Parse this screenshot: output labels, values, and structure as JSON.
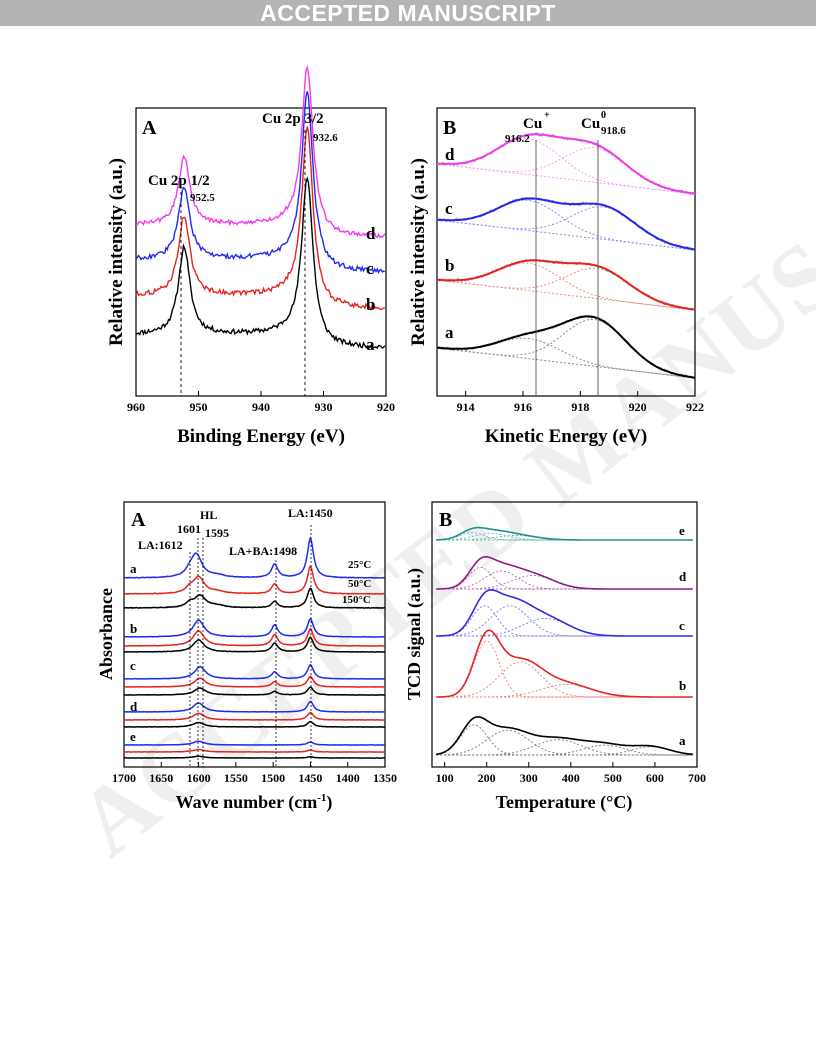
{
  "banner": {
    "text": "ACCEPTED MANUSCRIPT"
  },
  "watermark": "ACCEPTED MANUSCRIPT",
  "figures": {
    "xps_cu2p": {
      "panel_label": "A",
      "xlabel": "Binding Energy (eV)",
      "ylabel": "Relative intensity (a.u.)",
      "x_ticks": [
        "960",
        "950",
        "940",
        "930",
        "920"
      ],
      "peak_labels": [
        {
          "name": "Cu 2p 1/2",
          "position": "952.5"
        },
        {
          "name": "Cu 2p 3/2",
          "position": "932.6"
        }
      ],
      "series_labels": [
        "a",
        "b",
        "c",
        "d"
      ],
      "colors": [
        "#000000",
        "#e8231f",
        "#1f2bf0",
        "#f23af0"
      ]
    },
    "xaes_lmm": {
      "panel_label": "B",
      "xlabel": "Kinetic Energy (eV)",
      "ylabel": "Relative intensity (a.u.)",
      "x_ticks": [
        "914",
        "916",
        "918",
        "920",
        "922"
      ],
      "species": [
        {
          "name": "Cu",
          "charge": "+",
          "position": "916.2"
        },
        {
          "name": "Cu",
          "charge": "0",
          "position": "918.6"
        }
      ],
      "series_labels": [
        "a",
        "b",
        "c",
        "d"
      ]
    },
    "pyridine_ir": {
      "panel_label": "A",
      "xlabel": "Wave number",
      "xunit": "(cm",
      "xunit_sup": "-1",
      "xunit_close": ")",
      "ylabel": "Absorbance",
      "x_ticks": [
        "1700",
        "1650",
        "1600",
        "1550",
        "1500",
        "1450",
        "1400",
        "1350"
      ],
      "band_labels": [
        "LA:1612",
        "1601",
        "HL",
        "1595",
        "LA+BA:1498",
        "LA:1450"
      ],
      "temperatures": [
        "25°C",
        "50°C",
        "150°C"
      ],
      "series_labels": [
        "a",
        "b",
        "c",
        "d",
        "e"
      ]
    },
    "h2_tpr": {
      "panel_label": "B",
      "xlabel": "Temperature (°C)",
      "ylabel": "TCD signal (a.u.)",
      "x_ticks": [
        "100",
        "200",
        "300",
        "400",
        "500",
        "600",
        "700"
      ],
      "series_labels": [
        "e",
        "d",
        "c",
        "b",
        "a"
      ],
      "colors": [
        "#1e9089",
        "#8a1c8a",
        "#2b2be8",
        "#e8231f",
        "#000000"
      ]
    }
  },
  "chart_data": [
    {
      "type": "line",
      "title": "",
      "xlabel": "Binding Energy (eV)",
      "ylabel": "Relative intensity (a.u.)",
      "xlim": [
        960,
        920
      ],
      "annotations": [
        {
          "text": "Cu 2p 1/2",
          "x": 952.5
        },
        {
          "text": "Cu 2p 3/2",
          "x": 932.6
        }
      ],
      "series": [
        {
          "name": "a",
          "peaks": [
            {
              "x": 952.3,
              "height": 0.46
            },
            {
              "x": 932.6,
              "height": 0.9
            }
          ]
        },
        {
          "name": "b",
          "peaks": [
            {
              "x": 952.3,
              "height": 0.42
            },
            {
              "x": 932.6,
              "height": 0.95
            }
          ]
        },
        {
          "name": "c",
          "peaks": [
            {
              "x": 952.3,
              "height": 0.4
            },
            {
              "x": 932.6,
              "height": 1.0
            }
          ]
        },
        {
          "name": "d",
          "peaks": [
            {
              "x": 952.3,
              "height": 0.4
            },
            {
              "x": 932.6,
              "height": 1.0
            }
          ]
        }
      ]
    },
    {
      "type": "line",
      "title": "",
      "xlabel": "Kinetic Energy (eV)",
      "ylabel": "Relative intensity (a.u.)",
      "xlim": [
        913,
        922
      ],
      "annotations": [
        {
          "text": "Cu+",
          "x": 916.2
        },
        {
          "text": "Cu0",
          "x": 918.6
        }
      ],
      "series": [
        {
          "name": "a",
          "components": [
            {
              "x": 916.2,
              "height": 0.28
            },
            {
              "x": 918.5,
              "height": 0.65
            }
          ]
        },
        {
          "name": "b",
          "components": [
            {
              "x": 916.2,
              "height": 0.38
            },
            {
              "x": 918.6,
              "height": 0.42
            }
          ]
        },
        {
          "name": "c",
          "components": [
            {
              "x": 916.2,
              "height": 0.42
            },
            {
              "x": 918.8,
              "height": 0.45
            }
          ]
        },
        {
          "name": "d",
          "components": [
            {
              "x": 916.2,
              "height": 0.5
            },
            {
              "x": 918.5,
              "height": 0.48
            }
          ]
        }
      ]
    },
    {
      "type": "line",
      "title": "",
      "xlabel": "Wave number (cm-1)",
      "ylabel": "Absorbance",
      "xlim": [
        1700,
        1350
      ],
      "reference_lines": [
        1612,
        1601,
        1595,
        1498,
        1450
      ],
      "series": [
        {
          "name": "a 25°C",
          "bands": [
            {
              "x": 1603,
              "h": 0.42
            },
            {
              "x": 1498,
              "h": 0.25
            },
            {
              "x": 1450,
              "h": 0.72
            }
          ]
        },
        {
          "name": "a 50°C",
          "bands": [
            {
              "x": 1600,
              "h": 0.3
            },
            {
              "x": 1498,
              "h": 0.18
            },
            {
              "x": 1450,
              "h": 0.5
            }
          ]
        },
        {
          "name": "a 150°C",
          "bands": [
            {
              "x": 1598,
              "h": 0.22
            },
            {
              "x": 1498,
              "h": 0.12
            },
            {
              "x": 1450,
              "h": 0.36
            }
          ]
        },
        {
          "name": "b 25°C",
          "bands": [
            {
              "x": 1600,
              "h": 0.42
            },
            {
              "x": 1498,
              "h": 0.3
            },
            {
              "x": 1450,
              "h": 0.45
            }
          ]
        },
        {
          "name": "b 50°C",
          "bands": [
            {
              "x": 1600,
              "h": 0.38
            },
            {
              "x": 1498,
              "h": 0.28
            },
            {
              "x": 1450,
              "h": 0.42
            }
          ]
        },
        {
          "name": "b 150°C",
          "bands": [
            {
              "x": 1600,
              "h": 0.3
            },
            {
              "x": 1498,
              "h": 0.22
            },
            {
              "x": 1450,
              "h": 0.36
            }
          ]
        },
        {
          "name": "c 25°C",
          "bands": [
            {
              "x": 1598,
              "h": 0.35
            },
            {
              "x": 1498,
              "h": 0.2
            },
            {
              "x": 1450,
              "h": 0.4
            }
          ]
        },
        {
          "name": "c 50°C",
          "bands": [
            {
              "x": 1598,
              "h": 0.25
            },
            {
              "x": 1498,
              "h": 0.15
            },
            {
              "x": 1450,
              "h": 0.3
            }
          ]
        },
        {
          "name": "c 150°C",
          "bands": [
            {
              "x": 1598,
              "h": 0.2
            },
            {
              "x": 1498,
              "h": 0.1
            },
            {
              "x": 1450,
              "h": 0.22
            }
          ]
        },
        {
          "name": "d 25°C",
          "bands": [
            {
              "x": 1600,
              "h": 0.3
            },
            {
              "x": 1450,
              "h": 0.35
            }
          ]
        },
        {
          "name": "d 50°C",
          "bands": [
            {
              "x": 1600,
              "h": 0.22
            },
            {
              "x": 1450,
              "h": 0.25
            }
          ]
        },
        {
          "name": "d 150°C",
          "bands": [
            {
              "x": 1600,
              "h": 0.15
            },
            {
              "x": 1450,
              "h": 0.18
            }
          ]
        },
        {
          "name": "e 25°C",
          "bands": [
            {
              "x": 1600,
              "h": 0.15
            },
            {
              "x": 1450,
              "h": 0.12
            }
          ]
        },
        {
          "name": "e 50°C",
          "bands": [
            {
              "x": 1600,
              "h": 0.1
            },
            {
              "x": 1450,
              "h": 0.08
            }
          ]
        },
        {
          "name": "e 150°C",
          "bands": [
            {
              "x": 1600,
              "h": 0.07
            },
            {
              "x": 1450,
              "h": 0.05
            }
          ]
        }
      ]
    },
    {
      "type": "line",
      "title": "",
      "xlabel": "Temperature (°C)",
      "ylabel": "TCD signal (a.u.)",
      "xlim": [
        70,
        700
      ],
      "series": [
        {
          "name": "e",
          "components": [
            {
              "x": 165,
              "w": 28,
              "h": 0.25
            },
            {
              "x": 210,
              "w": 40,
              "h": 0.22
            },
            {
              "x": 270,
              "w": 50,
              "h": 0.15
            }
          ]
        },
        {
          "name": "d",
          "components": [
            {
              "x": 185,
              "w": 28,
              "h": 0.48
            },
            {
              "x": 235,
              "w": 40,
              "h": 0.4
            },
            {
              "x": 310,
              "w": 50,
              "h": 0.3
            }
          ]
        },
        {
          "name": "c",
          "components": [
            {
              "x": 195,
              "w": 30,
              "h": 0.55
            },
            {
              "x": 255,
              "w": 45,
              "h": 0.55
            },
            {
              "x": 340,
              "w": 55,
              "h": 0.32
            }
          ]
        },
        {
          "name": "b",
          "components": [
            {
              "x": 200,
              "w": 30,
              "h": 0.8
            },
            {
              "x": 280,
              "w": 50,
              "h": 0.5
            },
            {
              "x": 390,
              "w": 60,
              "h": 0.18
            }
          ]
        },
        {
          "name": "a",
          "components": [
            {
              "x": 170,
              "w": 32,
              "h": 0.55
            },
            {
              "x": 250,
              "w": 50,
              "h": 0.45
            },
            {
              "x": 370,
              "w": 55,
              "h": 0.28
            },
            {
              "x": 480,
              "w": 50,
              "h": 0.18
            },
            {
              "x": 590,
              "w": 45,
              "h": 0.15
            }
          ]
        }
      ]
    }
  ]
}
